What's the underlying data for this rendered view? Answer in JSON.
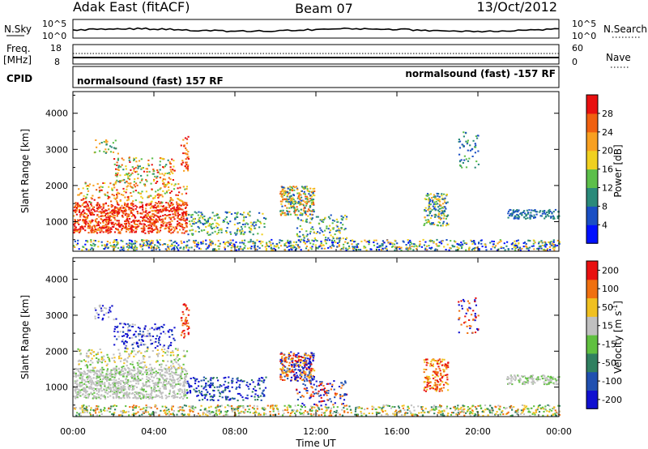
{
  "header": {
    "station": "Adak East (fitACF)",
    "beam": "Beam 07",
    "date": "13/Oct/2012"
  },
  "top_panels": {
    "nsky_label": "N.Sky",
    "nsky_ticks": [
      "10^5",
      "10^0"
    ],
    "nsearch_label": "N.Search",
    "nsearch_ticks": [
      "10^5",
      "10^0"
    ],
    "freq_label": "Freq.",
    "freq_unit": "[MHz]",
    "freq_ticks": [
      "18",
      "8"
    ],
    "nave_label": "Nave",
    "nave_ticks": [
      "60",
      "0"
    ],
    "cpid_label": "CPID",
    "cpid_left": "normalsound (fast) 157 RF",
    "cpid_right": "normalsound (fast) -157 RF"
  },
  "chart_data": [
    {
      "type": "heatmap",
      "panel": "power",
      "ylabel": "Slant Range [km]",
      "xlabel": "",
      "x_ticks": [
        "00:00",
        "04:00",
        "08:00",
        "12:00",
        "16:00",
        "20:00",
        "00:00"
      ],
      "y_ticks": [
        "1000",
        "2000",
        "3000",
        "4000"
      ],
      "xlim_hours": [
        0,
        24
      ],
      "ylim_km": [
        180,
        4600
      ],
      "colorbar": {
        "label": "Power [dB]",
        "ticks": [
          "4",
          "8",
          "12",
          "16",
          "20",
          "24",
          "28"
        ],
        "colors": [
          "#0010ff",
          "#1a4fc4",
          "#2a8a7a",
          "#5cbf4a",
          "#f0d020",
          "#f8a020",
          "#f06010",
          "#e81010"
        ]
      }
    },
    {
      "type": "heatmap",
      "panel": "velocity",
      "ylabel": "Slant Range [km]",
      "xlabel": "Time UT",
      "x_ticks": [
        "00:00",
        "04:00",
        "08:00",
        "12:00",
        "16:00",
        "20:00",
        "00:00"
      ],
      "y_ticks": [
        "1000",
        "2000",
        "3000",
        "4000"
      ],
      "xlim_hours": [
        0,
        24
      ],
      "ylim_km": [
        180,
        4600
      ],
      "colorbar": {
        "label": "Velocity [m s",
        "label_exp": "-1",
        "label_end": "]",
        "ticks": [
          "200",
          "100",
          "50",
          "15",
          "-15",
          "-50",
          "-100",
          "-200"
        ],
        "colors": [
          "#1010d0",
          "#2050b0",
          "#308060",
          "#60c040",
          "#c0c0c0",
          "#f0c020",
          "#f07010",
          "#e81010"
        ]
      }
    }
  ]
}
